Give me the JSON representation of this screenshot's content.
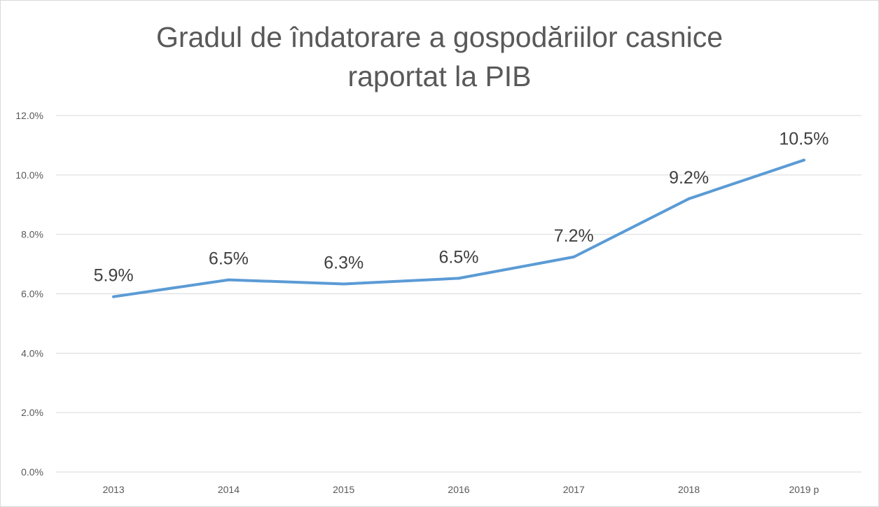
{
  "colors": {
    "series": "#5b9bd5"
  },
  "chart_data": {
    "type": "line",
    "title_lines": [
      "Gradul de îndatorare a gospodăriilor casnice",
      "raportat la PIB"
    ],
    "categories": [
      "2013",
      "2014",
      "2015",
      "2016",
      "2017",
      "2018",
      "2019 p"
    ],
    "series": [
      {
        "values": [
          5.9,
          6.47,
          6.33,
          6.52,
          7.24,
          9.2,
          10.5
        ],
        "labels": [
          "5.9%",
          "6.5%",
          "6.3%",
          "6.5%",
          "7.2%",
          "9.2%",
          "10.5%"
        ]
      }
    ],
    "yticks": [
      "0.0%",
      "2.0%",
      "4.0%",
      "6.0%",
      "8.0%",
      "10.0%",
      "12.0%"
    ],
    "ylim": [
      0,
      12
    ],
    "ystep": 2,
    "grid": true,
    "legend": "none"
  }
}
